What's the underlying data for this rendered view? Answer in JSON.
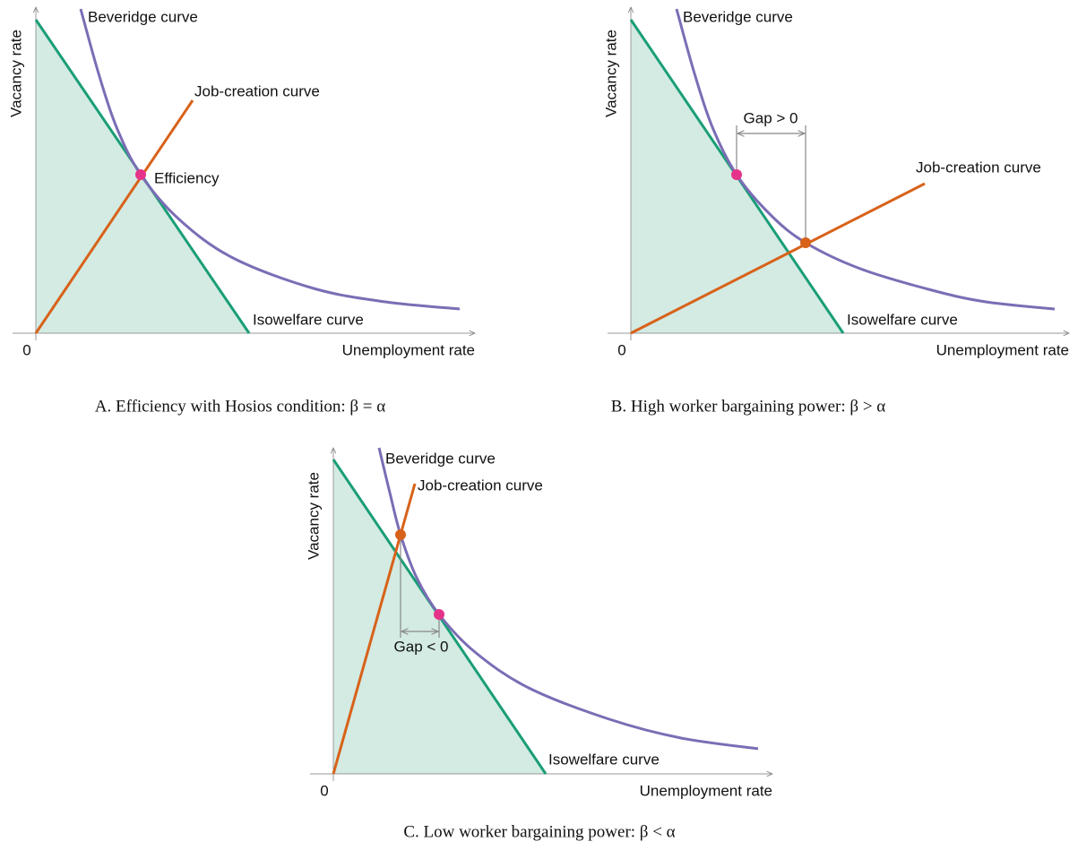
{
  "panels": [
    {
      "beveridge_label": "Beveridge curve",
      "job_creation_label": "Job-creation curve",
      "point_label": "Efficiency",
      "isowelfare_label": "Isowelfare curve",
      "x_axis_label": "Unemployment rate",
      "y_axis_label": "Vacancy rate",
      "origin_label": "0",
      "caption": "A. Efficiency with Hosios condition: β = α"
    },
    {
      "beveridge_label": "Beveridge curve",
      "job_creation_label": "Job-creation curve",
      "gap_label": "Gap > 0",
      "isowelfare_label": "Isowelfare curve",
      "x_axis_label": "Unemployment rate",
      "y_axis_label": "Vacancy rate",
      "origin_label": "0",
      "caption": "B. High worker bargaining power: β > α"
    },
    {
      "beveridge_label": "Beveridge curve",
      "job_creation_label": "Job-creation curve",
      "gap_label": "Gap < 0",
      "isowelfare_label": "Isowelfare curve",
      "x_axis_label": "Unemployment rate",
      "y_axis_label": "Vacancy rate",
      "origin_label": "0",
      "caption": "C. Low worker bargaining power: β < α"
    }
  ]
}
